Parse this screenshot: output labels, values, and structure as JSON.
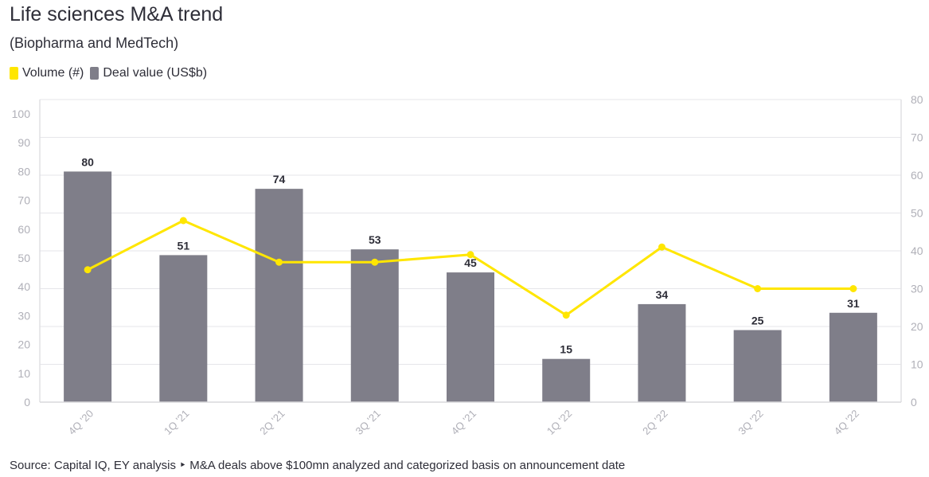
{
  "title": "Life sciences M&A trend",
  "subtitle": "(Biopharma and MedTech)",
  "legend": [
    {
      "label": "Volume (#)",
      "color": "#ffe600"
    },
    {
      "label": "Deal value (US$b)",
      "color": "#7f7e89"
    }
  ],
  "footer": {
    "part1": "Source: Capital IQ, EY analysis",
    "separator": "‣",
    "part2": "M&A deals above $100mn analyzed and categorized basis on announcement date"
  },
  "chart_data": {
    "type": "bar",
    "categories": [
      "4Q '20",
      "1Q '21",
      "2Q '21",
      "3Q '21",
      "4Q '21",
      "1Q '22",
      "2Q '22",
      "3Q '22",
      "4Q '22"
    ],
    "series": [
      {
        "name": "Deal value (US$b)",
        "type": "bar",
        "axis": "left",
        "color": "#7f7e89",
        "values": [
          80,
          51,
          74,
          53,
          45,
          15,
          34,
          25,
          31
        ]
      },
      {
        "name": "Volume (#)",
        "type": "line",
        "axis": "right",
        "color": "#ffe600",
        "values": [
          35,
          48,
          37,
          37,
          39,
          23,
          41,
          30,
          30
        ]
      }
    ],
    "data_labels": [
      "80",
      "51",
      "74",
      "53",
      "45",
      "15",
      "34",
      "25",
      "31"
    ],
    "ylim_left": [
      0,
      100
    ],
    "yticks_left": [
      0,
      10,
      20,
      30,
      40,
      50,
      60,
      70,
      80,
      90,
      100
    ],
    "ylim_right": [
      0,
      80
    ],
    "yticks_right": [
      0,
      10,
      20,
      30,
      40,
      50,
      60,
      70,
      80
    ],
    "grid": true,
    "legend_position": "top-left"
  }
}
